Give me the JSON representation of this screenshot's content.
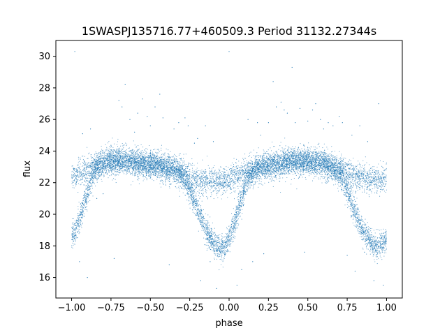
{
  "chart_data": {
    "type": "scatter",
    "title": "1SWASPJ135716.77+460509.3 Period 31132.27344s",
    "xlabel": "phase",
    "ylabel": "flux",
    "xlim": [
      -1.1,
      1.1
    ],
    "ylim": [
      14.7,
      31.0
    ],
    "xticks": [
      -1.0,
      -0.75,
      -0.5,
      -0.25,
      0.0,
      0.25,
      0.5,
      0.75,
      1.0
    ],
    "xtick_labels": [
      "−1.00",
      "−0.75",
      "−0.50",
      "−0.25",
      "0.00",
      "0.25",
      "0.50",
      "0.75",
      "1.00"
    ],
    "yticks": [
      16,
      18,
      20,
      22,
      24,
      26,
      28,
      30
    ],
    "ytick_labels": [
      "16",
      "18",
      "20",
      "22",
      "24",
      "26",
      "28",
      "30"
    ],
    "grid": false,
    "legend": "none",
    "marker_color": "#1f77b4",
    "series": [
      {
        "x": [
          -1.0,
          -0.95,
          -0.9,
          -0.85,
          -0.8,
          -0.75,
          -0.7,
          -0.65,
          -0.6,
          -0.55,
          -0.5,
          -0.45,
          -0.4,
          -0.35,
          -0.3,
          -0.25,
          -0.2,
          -0.15,
          -0.1,
          -0.05,
          0.0,
          0.05,
          0.1,
          0.15,
          0.2,
          0.25,
          0.3,
          0.35,
          0.4,
          0.45,
          0.5,
          0.55,
          0.6,
          0.65,
          0.7,
          0.75,
          0.8,
          0.85,
          0.9,
          0.95,
          1.0
        ],
        "y": [
          22.3,
          22.6,
          22.8,
          23.0,
          23.1,
          23.2,
          23.3,
          23.3,
          23.3,
          23.2,
          23.2,
          23.1,
          23.0,
          22.9,
          22.7,
          22.4,
          22.2,
          22.1,
          22.1,
          22.1,
          22.2,
          22.4,
          22.6,
          22.8,
          22.9,
          23.0,
          23.1,
          23.2,
          23.3,
          23.3,
          23.3,
          23.2,
          23.1,
          23.0,
          22.8,
          22.6,
          22.4,
          22.3,
          22.2,
          22.2,
          22.3
        ]
      },
      {
        "x": [
          -1.0,
          -0.97,
          -0.94,
          -0.91,
          -0.88,
          -0.85,
          -0.82,
          -0.79,
          -0.76,
          -0.73,
          -0.7,
          -0.65,
          -0.6,
          -0.55,
          -0.5,
          -0.45,
          -0.4,
          -0.35,
          -0.3,
          -0.25,
          -0.22,
          -0.19,
          -0.16,
          -0.13,
          -0.1,
          -0.07,
          -0.04,
          -0.01,
          0.02,
          0.05,
          0.08,
          0.11,
          0.14,
          0.17,
          0.2,
          0.25,
          0.3,
          0.35,
          0.4,
          0.45,
          0.5,
          0.55,
          0.6,
          0.65,
          0.7,
          0.73,
          0.76,
          0.79,
          0.82,
          0.85,
          0.88,
          0.91,
          0.94,
          0.97,
          1.0
        ],
        "y": [
          18.5,
          19.2,
          20.0,
          21.0,
          22.0,
          22.8,
          23.2,
          23.4,
          23.5,
          23.5,
          23.5,
          23.4,
          23.3,
          23.2,
          23.1,
          23.0,
          22.9,
          22.8,
          22.5,
          21.6,
          20.8,
          20.0,
          19.3,
          18.7,
          18.2,
          17.9,
          17.9,
          18.3,
          19.0,
          20.0,
          21.0,
          22.0,
          22.6,
          22.9,
          23.0,
          23.1,
          23.2,
          23.3,
          23.4,
          23.4,
          23.4,
          23.3,
          23.2,
          23.0,
          22.6,
          22.0,
          21.2,
          20.4,
          19.6,
          19.0,
          18.5,
          18.1,
          17.9,
          18.1,
          18.5
        ]
      }
    ],
    "outliers": {
      "x": [
        -0.98,
        -0.95,
        -0.93,
        -0.9,
        -0.88,
        -0.84,
        -0.8,
        -0.73,
        -0.7,
        -0.68,
        -0.66,
        -0.63,
        -0.6,
        -0.58,
        -0.55,
        -0.52,
        -0.5,
        -0.47,
        -0.44,
        -0.42,
        -0.38,
        -0.35,
        -0.32,
        -0.28,
        -0.26,
        -0.22,
        -0.2,
        -0.18,
        -0.15,
        -0.12,
        -0.1,
        -0.08,
        0.0,
        0.05,
        0.08,
        0.12,
        0.15,
        0.18,
        0.2,
        0.22,
        0.25,
        0.28,
        0.3,
        0.33,
        0.35,
        0.37,
        0.4,
        0.42,
        0.45,
        0.48,
        0.5,
        0.53,
        0.55,
        0.58,
        0.6,
        0.63,
        0.66,
        0.7,
        0.72,
        0.75,
        0.78,
        0.8,
        0.83,
        0.86,
        0.88,
        0.92,
        0.95,
        0.98
      ],
      "y": [
        30.3,
        17.0,
        25.1,
        16.0,
        25.4,
        21.0,
        21.3,
        17.2,
        27.2,
        26.8,
        28.2,
        26.0,
        25.2,
        26.4,
        27.3,
        26.2,
        25.6,
        26.8,
        27.6,
        26.1,
        16.8,
        25.4,
        25.8,
        26.1,
        25.6,
        24.5,
        24.8,
        15.8,
        25.6,
        17.0,
        24.6,
        15.3,
        30.3,
        15.5,
        16.5,
        26.0,
        17.0,
        25.8,
        25.0,
        17.5,
        25.8,
        28.4,
        26.8,
        27.1,
        26.6,
        26.4,
        29.3,
        25.8,
        26.7,
        17.6,
        25.9,
        26.6,
        27.0,
        26.0,
        25.4,
        25.8,
        25.6,
        26.2,
        25.8,
        17.4,
        25.0,
        16.4,
        25.6,
        17.6,
        24.6,
        15.8,
        27.0,
        15.5
      ]
    }
  }
}
